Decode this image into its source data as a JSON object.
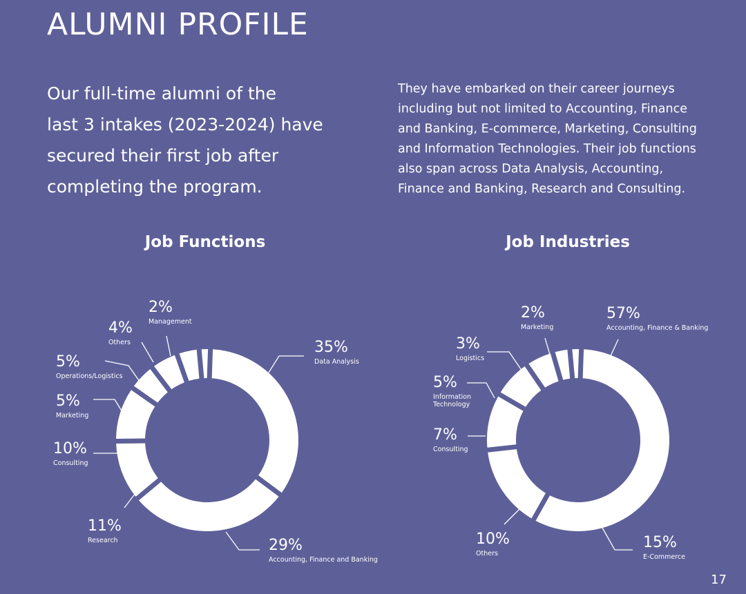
{
  "page": {
    "title": "ALUMNI PROFILE",
    "intro_left": [
      "Our full-time alumni of the",
      "last 3 intakes (2023-2024) have",
      "secured their first job after",
      "completing the program."
    ],
    "intro_right": [
      "They have embarked on their career journeys",
      "including but not limited to Accounting, Finance",
      "and Banking, E-commerce, Marketing, Consulting",
      "and Information Technologies. Their job functions",
      "also span across Data Analysis, Accounting,",
      "Finance and Banking, Research and Consulting."
    ],
    "page_number": "17"
  },
  "colors": {
    "background": "#5d6098",
    "ring": "#ffffff",
    "text": "#ffffff"
  },
  "chart_data": [
    {
      "type": "pie",
      "donut": true,
      "title": "Job Functions",
      "slices": [
        {
          "label": "Data Analysis",
          "value": 35,
          "value_text": "35%"
        },
        {
          "label": "Accounting, Finance and Banking",
          "value": 29,
          "value_text": "29%"
        },
        {
          "label": "Research",
          "value": 11,
          "value_text": "11%"
        },
        {
          "label": "Consulting",
          "value": 10,
          "value_text": "10%"
        },
        {
          "label": "Marketing",
          "value": 5,
          "value_text": "5%"
        },
        {
          "label": "Operations/Logistics",
          "value": 5,
          "value_text": "5%"
        },
        {
          "label": "Others",
          "value": 4,
          "value_text": "4%"
        },
        {
          "label": "Management",
          "value": 2,
          "value_text": "2%"
        }
      ]
    },
    {
      "type": "pie",
      "donut": true,
      "title": "Job Industries",
      "slices": [
        {
          "label": "Accounting, Finance & Banking",
          "value": 57,
          "value_text": "57%"
        },
        {
          "label": "E-Commerce",
          "value": 15,
          "value_text": "15%"
        },
        {
          "label": "Others",
          "value": 10,
          "value_text": "10%"
        },
        {
          "label": "Consulting",
          "value": 7,
          "value_text": "7%"
        },
        {
          "label": "Information Technology",
          "value": 5,
          "value_text": "5%"
        },
        {
          "label": "Logistics",
          "value": 3,
          "value_text": "3%"
        },
        {
          "label": "Marketing",
          "value": 2,
          "value_text": "2%"
        }
      ]
    }
  ]
}
